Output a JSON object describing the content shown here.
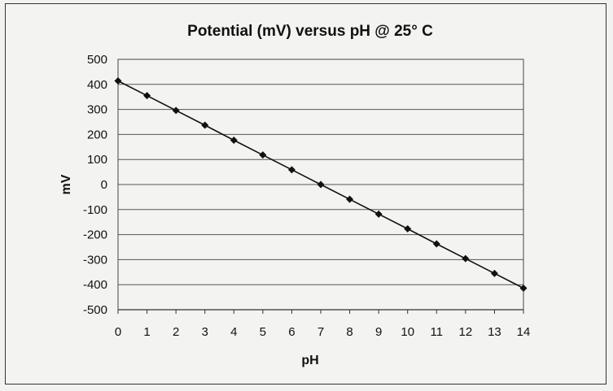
{
  "chart_data": {
    "type": "line",
    "title": "Potential (mV) versus pH @ 25° C",
    "xlabel": "pH",
    "ylabel": "mV",
    "xlim": [
      0,
      14
    ],
    "ylim": [
      -500,
      500
    ],
    "x_ticks": [
      0,
      1,
      2,
      3,
      4,
      5,
      6,
      7,
      8,
      9,
      10,
      11,
      12,
      13,
      14
    ],
    "y_ticks": [
      500,
      400,
      300,
      200,
      100,
      0,
      -100,
      -200,
      -300,
      -400,
      -500
    ],
    "grid": "horizontal",
    "series": [
      {
        "name": "Potential",
        "marker": "diamond",
        "color": "#111111",
        "x": [
          0,
          1,
          2,
          3,
          4,
          5,
          6,
          7,
          8,
          9,
          10,
          11,
          12,
          13,
          14
        ],
        "y": [
          414,
          355,
          296,
          237,
          177,
          118,
          59,
          0,
          -59,
          -118,
          -177,
          -237,
          -296,
          -355,
          -414
        ]
      }
    ]
  }
}
